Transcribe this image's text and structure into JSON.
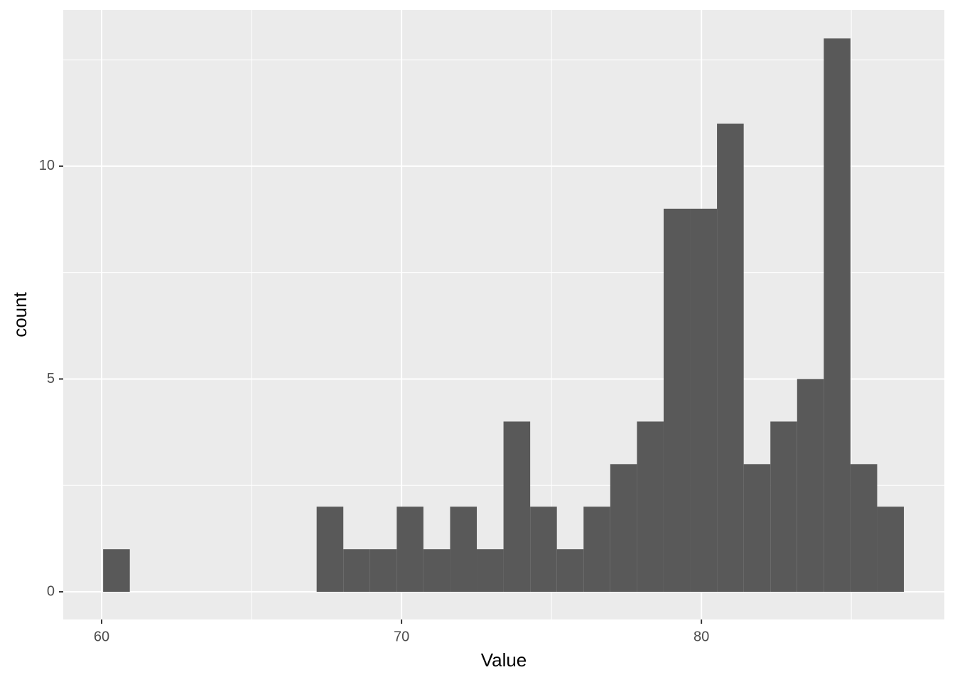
{
  "chart_data": {
    "type": "histogram",
    "xlabel": "Value",
    "ylabel": "count",
    "bins": [
      60.05,
      60.94,
      61.83,
      62.72,
      63.61,
      64.5,
      65.39,
      66.28,
      67.17,
      68.06,
      68.95,
      69.84,
      70.73,
      71.62,
      72.51,
      73.4,
      74.29,
      75.18,
      76.07,
      76.96,
      77.85,
      78.74,
      79.63,
      80.52,
      81.41,
      82.3,
      83.19,
      84.08,
      84.97,
      85.86,
      86.75
    ],
    "values": [
      1,
      0,
      0,
      0,
      0,
      0,
      0,
      0,
      2,
      1,
      1,
      2,
      1,
      2,
      1,
      4,
      2,
      1,
      2,
      3,
      4,
      9,
      9,
      11,
      3,
      4,
      5,
      13,
      3,
      2
    ],
    "color": "#595959",
    "xlim": [
      58.72,
      88.1
    ],
    "xticks": [
      60,
      70,
      80
    ],
    "xminor": [
      65,
      75,
      85
    ],
    "ylim": [
      -0.65,
      13.67
    ],
    "yticks": [
      0,
      5,
      10
    ],
    "yminor": [
      2.5,
      7.5,
      12.5
    ],
    "grid": true,
    "background": "#ebebeb"
  }
}
